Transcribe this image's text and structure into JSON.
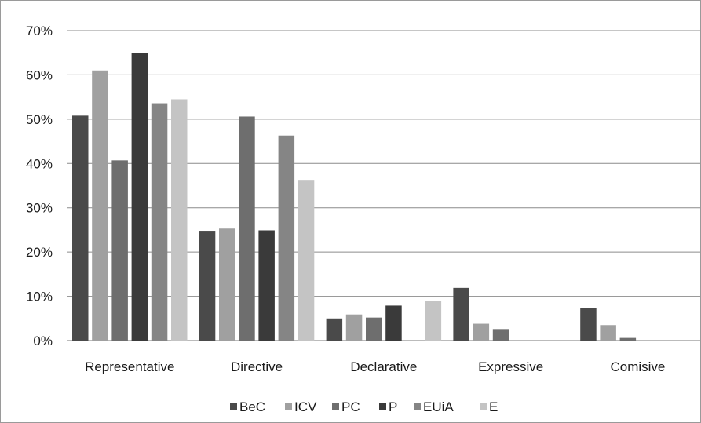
{
  "chart_data": {
    "type": "bar",
    "title": "",
    "xlabel": "",
    "ylabel": "",
    "ylim": [
      0,
      70
    ],
    "y_ticks": [
      "0%",
      "10%",
      "20%",
      "30%",
      "40%",
      "50%",
      "60%",
      "70%"
    ],
    "y_tick_values": [
      0,
      10,
      20,
      30,
      40,
      50,
      60,
      70
    ],
    "grid": true,
    "legend_position": "bottom",
    "categories": [
      "Representative",
      "Directive",
      "Declarative",
      "Expressive",
      "Comisive"
    ],
    "series": [
      {
        "name": "BeC",
        "color": "#4a4a4a",
        "values": [
          50.8,
          24.8,
          5.0,
          11.9,
          7.3
        ]
      },
      {
        "name": "ICV",
        "color": "#a0a0a0",
        "values": [
          61.0,
          25.3,
          5.9,
          3.8,
          3.5
        ]
      },
      {
        "name": "PC",
        "color": "#6e6e6e",
        "values": [
          40.7,
          50.6,
          5.2,
          2.6,
          0.6
        ]
      },
      {
        "name": "P",
        "color": "#3a3a3a",
        "values": [
          65.0,
          24.9,
          7.9,
          0,
          0
        ]
      },
      {
        "name": "EUiA",
        "color": "#858585",
        "values": [
          53.6,
          46.3,
          0,
          0,
          0
        ]
      },
      {
        "name": "E",
        "color": "#c4c4c4",
        "values": [
          54.5,
          36.3,
          9.0,
          0,
          0
        ]
      }
    ]
  }
}
